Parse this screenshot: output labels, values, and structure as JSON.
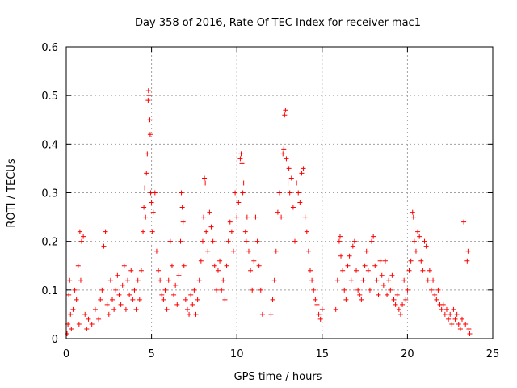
{
  "chart_data": {
    "type": "scatter",
    "title": "Day 358 of 2016, Rate Of TEC Index for receiver mac1",
    "xlabel": "GPS time / hours",
    "ylabel": "ROTI / TECUs",
    "xlim": [
      0,
      25
    ],
    "ylim": [
      0,
      0.6
    ],
    "xticks": [
      "0",
      "5",
      "10",
      "15",
      "20",
      "25"
    ],
    "yticks": [
      "0",
      "0.1",
      "0.2",
      "0.3",
      "0.4",
      "0.5",
      "0.6"
    ],
    "grid": true,
    "marker": "plus",
    "color": "#ff0000",
    "series": [
      {
        "points": [
          [
            0.05,
            0.01
          ],
          [
            0.1,
            0.03
          ],
          [
            0.15,
            0.09
          ],
          [
            0.2,
            0.12
          ],
          [
            0.25,
            0.05
          ],
          [
            0.3,
            0.02
          ],
          [
            0.4,
            0.06
          ],
          [
            0.5,
            0.1
          ],
          [
            0.6,
            0.08
          ],
          [
            0.7,
            0.15
          ],
          [
            0.75,
            0.03
          ],
          [
            0.8,
            0.22
          ],
          [
            0.85,
            0.12
          ],
          [
            0.9,
            0.2
          ],
          [
            1.0,
            0.21
          ],
          [
            1.1,
            0.05
          ],
          [
            1.2,
            0.02
          ],
          [
            1.3,
            0.04
          ],
          [
            1.5,
            0.03
          ],
          [
            1.7,
            0.06
          ],
          [
            1.9,
            0.04
          ],
          [
            2.0,
            0.08
          ],
          [
            2.1,
            0.1
          ],
          [
            2.2,
            0.19
          ],
          [
            2.3,
            0.22
          ],
          [
            2.4,
            0.07
          ],
          [
            2.5,
            0.05
          ],
          [
            2.6,
            0.12
          ],
          [
            2.7,
            0.08
          ],
          [
            2.8,
            0.06
          ],
          [
            2.9,
            0.1
          ],
          [
            3.0,
            0.13
          ],
          [
            3.1,
            0.09
          ],
          [
            3.2,
            0.07
          ],
          [
            3.3,
            0.11
          ],
          [
            3.4,
            0.15
          ],
          [
            3.5,
            0.06
          ],
          [
            3.6,
            0.12
          ],
          [
            3.7,
            0.09
          ],
          [
            3.8,
            0.14
          ],
          [
            3.9,
            0.08
          ],
          [
            4.0,
            0.1
          ],
          [
            4.1,
            0.06
          ],
          [
            4.2,
            0.12
          ],
          [
            4.3,
            0.08
          ],
          [
            4.4,
            0.14
          ],
          [
            4.5,
            0.22
          ],
          [
            4.55,
            0.27
          ],
          [
            4.6,
            0.31
          ],
          [
            4.65,
            0.25
          ],
          [
            4.7,
            0.34
          ],
          [
            4.75,
            0.38
          ],
          [
            4.8,
            0.49
          ],
          [
            4.82,
            0.51
          ],
          [
            4.85,
            0.5
          ],
          [
            4.9,
            0.45
          ],
          [
            4.92,
            0.42
          ],
          [
            4.95,
            0.3
          ],
          [
            5.0,
            0.28
          ],
          [
            5.05,
            0.22
          ],
          [
            5.1,
            0.26
          ],
          [
            5.2,
            0.3
          ],
          [
            5.3,
            0.18
          ],
          [
            5.4,
            0.14
          ],
          [
            5.5,
            0.12
          ],
          [
            5.6,
            0.09
          ],
          [
            5.7,
            0.08
          ],
          [
            5.8,
            0.1
          ],
          [
            5.9,
            0.06
          ],
          [
            6.0,
            0.12
          ],
          [
            6.1,
            0.2
          ],
          [
            6.2,
            0.15
          ],
          [
            6.3,
            0.09
          ],
          [
            6.4,
            0.11
          ],
          [
            6.5,
            0.07
          ],
          [
            6.6,
            0.13
          ],
          [
            6.7,
            0.2
          ],
          [
            6.75,
            0.3
          ],
          [
            6.8,
            0.27
          ],
          [
            6.85,
            0.24
          ],
          [
            6.9,
            0.15
          ],
          [
            7.0,
            0.08
          ],
          [
            7.1,
            0.06
          ],
          [
            7.2,
            0.05
          ],
          [
            7.3,
            0.09
          ],
          [
            7.4,
            0.07
          ],
          [
            7.5,
            0.1
          ],
          [
            7.6,
            0.05
          ],
          [
            7.7,
            0.08
          ],
          [
            7.8,
            0.12
          ],
          [
            7.9,
            0.16
          ],
          [
            8.0,
            0.2
          ],
          [
            8.05,
            0.25
          ],
          [
            8.1,
            0.33
          ],
          [
            8.15,
            0.32
          ],
          [
            8.2,
            0.22
          ],
          [
            8.3,
            0.18
          ],
          [
            8.4,
            0.26
          ],
          [
            8.5,
            0.23
          ],
          [
            8.6,
            0.2
          ],
          [
            8.7,
            0.15
          ],
          [
            8.8,
            0.1
          ],
          [
            8.9,
            0.14
          ],
          [
            9.0,
            0.16
          ],
          [
            9.1,
            0.1
          ],
          [
            9.2,
            0.12
          ],
          [
            9.3,
            0.08
          ],
          [
            9.4,
            0.15
          ],
          [
            9.5,
            0.2
          ],
          [
            9.6,
            0.24
          ],
          [
            9.7,
            0.22
          ],
          [
            9.8,
            0.18
          ],
          [
            9.9,
            0.3
          ],
          [
            10.0,
            0.25
          ],
          [
            10.1,
            0.28
          ],
          [
            10.2,
            0.37
          ],
          [
            10.25,
            0.38
          ],
          [
            10.3,
            0.36
          ],
          [
            10.35,
            0.3
          ],
          [
            10.4,
            0.32
          ],
          [
            10.5,
            0.22
          ],
          [
            10.55,
            0.2
          ],
          [
            10.6,
            0.25
          ],
          [
            10.7,
            0.18
          ],
          [
            10.8,
            0.14
          ],
          [
            10.9,
            0.1
          ],
          [
            11.0,
            0.16
          ],
          [
            11.1,
            0.25
          ],
          [
            11.2,
            0.2
          ],
          [
            11.3,
            0.15
          ],
          [
            11.4,
            0.1
          ],
          [
            11.5,
            0.05
          ],
          [
            12.0,
            0.05
          ],
          [
            12.1,
            0.08
          ],
          [
            12.2,
            0.12
          ],
          [
            12.3,
            0.18
          ],
          [
            12.4,
            0.26
          ],
          [
            12.5,
            0.3
          ],
          [
            12.6,
            0.25
          ],
          [
            12.7,
            0.38
          ],
          [
            12.75,
            0.39
          ],
          [
            12.8,
            0.46
          ],
          [
            12.85,
            0.47
          ],
          [
            12.9,
            0.37
          ],
          [
            13.0,
            0.32
          ],
          [
            13.05,
            0.35
          ],
          [
            13.1,
            0.3
          ],
          [
            13.2,
            0.33
          ],
          [
            13.3,
            0.27
          ],
          [
            13.4,
            0.2
          ],
          [
            13.5,
            0.32
          ],
          [
            13.6,
            0.3
          ],
          [
            13.7,
            0.28
          ],
          [
            13.8,
            0.34
          ],
          [
            13.9,
            0.35
          ],
          [
            14.0,
            0.25
          ],
          [
            14.1,
            0.22
          ],
          [
            14.2,
            0.18
          ],
          [
            14.3,
            0.14
          ],
          [
            14.4,
            0.12
          ],
          [
            14.5,
            0.1
          ],
          [
            14.6,
            0.08
          ],
          [
            14.7,
            0.07
          ],
          [
            14.8,
            0.05
          ],
          [
            14.9,
            0.04
          ],
          [
            15.0,
            0.06
          ],
          [
            15.8,
            0.06
          ],
          [
            15.9,
            0.12
          ],
          [
            16.0,
            0.2
          ],
          [
            16.05,
            0.21
          ],
          [
            16.1,
            0.17
          ],
          [
            16.2,
            0.14
          ],
          [
            16.3,
            0.1
          ],
          [
            16.4,
            0.08
          ],
          [
            16.5,
            0.15
          ],
          [
            16.6,
            0.17
          ],
          [
            16.7,
            0.12
          ],
          [
            16.8,
            0.19
          ],
          [
            16.9,
            0.2
          ],
          [
            17.0,
            0.14
          ],
          [
            17.1,
            0.1
          ],
          [
            17.2,
            0.09
          ],
          [
            17.3,
            0.08
          ],
          [
            17.4,
            0.12
          ],
          [
            17.5,
            0.15
          ],
          [
            17.6,
            0.18
          ],
          [
            17.7,
            0.14
          ],
          [
            17.8,
            0.1
          ],
          [
            17.9,
            0.2
          ],
          [
            18.0,
            0.21
          ],
          [
            18.1,
            0.15
          ],
          [
            18.2,
            0.12
          ],
          [
            18.3,
            0.09
          ],
          [
            18.4,
            0.16
          ],
          [
            18.5,
            0.13
          ],
          [
            18.6,
            0.11
          ],
          [
            18.7,
            0.16
          ],
          [
            18.8,
            0.09
          ],
          [
            18.9,
            0.12
          ],
          [
            19.0,
            0.1
          ],
          [
            19.1,
            0.13
          ],
          [
            19.2,
            0.08
          ],
          [
            19.3,
            0.07
          ],
          [
            19.4,
            0.09
          ],
          [
            19.5,
            0.06
          ],
          [
            19.6,
            0.05
          ],
          [
            19.7,
            0.07
          ],
          [
            19.8,
            0.12
          ],
          [
            19.9,
            0.08
          ],
          [
            20.0,
            0.1
          ],
          [
            20.1,
            0.14
          ],
          [
            20.2,
            0.16
          ],
          [
            20.3,
            0.26
          ],
          [
            20.35,
            0.25
          ],
          [
            20.4,
            0.2
          ],
          [
            20.5,
            0.18
          ],
          [
            20.6,
            0.22
          ],
          [
            20.7,
            0.21
          ],
          [
            20.8,
            0.16
          ],
          [
            20.9,
            0.14
          ],
          [
            21.0,
            0.2
          ],
          [
            21.1,
            0.19
          ],
          [
            21.2,
            0.12
          ],
          [
            21.3,
            0.14
          ],
          [
            21.4,
            0.1
          ],
          [
            21.5,
            0.12
          ],
          [
            21.6,
            0.09
          ],
          [
            21.7,
            0.08
          ],
          [
            21.8,
            0.1
          ],
          [
            21.9,
            0.07
          ],
          [
            22.0,
            0.06
          ],
          [
            22.1,
            0.07
          ],
          [
            22.2,
            0.05
          ],
          [
            22.3,
            0.06
          ],
          [
            22.4,
            0.04
          ],
          [
            22.5,
            0.05
          ],
          [
            22.6,
            0.03
          ],
          [
            22.7,
            0.06
          ],
          [
            22.8,
            0.04
          ],
          [
            22.9,
            0.05
          ],
          [
            23.0,
            0.03
          ],
          [
            23.1,
            0.02
          ],
          [
            23.2,
            0.04
          ],
          [
            23.3,
            0.24
          ],
          [
            23.4,
            0.03
          ],
          [
            23.5,
            0.16
          ],
          [
            23.55,
            0.18
          ],
          [
            23.6,
            0.02
          ],
          [
            23.65,
            0.01
          ]
        ]
      }
    ]
  }
}
